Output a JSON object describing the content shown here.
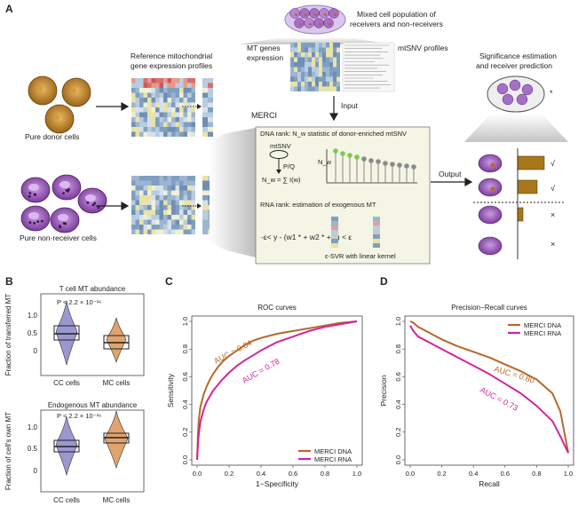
{
  "panels": [
    "A",
    "B",
    "C",
    "D"
  ],
  "panel_a": {
    "mixed_label": [
      "Mixed cell population of",
      "receivers and non-receivers"
    ],
    "mt_genes_label": [
      "MT genes",
      "expression"
    ],
    "mtsnv_label": "mtSNV profiles",
    "reference_label": [
      "Reference mitochondrial",
      "gene expression profiles"
    ],
    "significance_label": [
      "Significance estimation",
      "and receiver prediction"
    ],
    "pure_donor": "Pure donor cells",
    "pure_nonreceiver": "Pure non-receiver cells",
    "input_label": "Input",
    "merci_label": "MERCI",
    "output_label": "Output",
    "dna_rank": "DNA rank: N_w statistic of donor-enriched mtSNV",
    "mtsnv_small": "mtSNV",
    "pq": "P/Q",
    "nw_axis": "N_w",
    "nw_formula": "N_w = ∑ I(w)",
    "rna_rank": "RNA rank: estimation of exogenous MT",
    "svr_formula": "-ε< y - (w1 *       + w2 *       + b) < ε",
    "svr_label": "ε-SVR  with linear kernel",
    "check": "√",
    "cross": "×",
    "star": "*"
  },
  "panel_b": {
    "top": {
      "title": "T cell MT abundance",
      "ylabel": "Fraction of transferred MT",
      "pvalue": "P <  2.2 × 10⁻¹⁶",
      "yticks": [
        "0",
        "0.5",
        "1.0"
      ]
    },
    "bottom": {
      "title": "Endogenous MT abundance",
      "ylabel": "Fraction of cell's own MT",
      "pvalue": "P <  2.2 × 10⁻¹⁶",
      "yticks": [
        "0",
        "0.5",
        "1.0"
      ]
    },
    "xlabels": [
      "CC cells",
      "MC  cells"
    ]
  },
  "chart_data": [
    {
      "type": "line",
      "panel": "C",
      "title": "ROC curves",
      "xlabel": "1−Specificity",
      "ylabel": "Sensitivity",
      "xlim": [
        0,
        1
      ],
      "ylim": [
        0,
        1
      ],
      "xticks": [
        "0.0",
        "0.2",
        "0.4",
        "0.6",
        "0.8",
        "1.0"
      ],
      "yticks": [
        "0.0",
        "0.2",
        "0.4",
        "0.6",
        "0.8",
        "1.0"
      ],
      "legend_position": "bottom-right",
      "series": [
        {
          "name": "MERCI DNA",
          "color": "#b5682a",
          "auc_label": "AUC = 0.84",
          "x": [
            0,
            0.005,
            0.01,
            0.02,
            0.04,
            0.06,
            0.08,
            0.1,
            0.13,
            0.16,
            0.2,
            0.25,
            0.3,
            0.35,
            0.4,
            0.5,
            0.6,
            0.7,
            0.8,
            0.9,
            1.0
          ],
          "y": [
            0,
            0.18,
            0.28,
            0.38,
            0.47,
            0.53,
            0.58,
            0.62,
            0.67,
            0.71,
            0.75,
            0.79,
            0.83,
            0.86,
            0.88,
            0.91,
            0.93,
            0.95,
            0.97,
            0.99,
            1.0
          ]
        },
        {
          "name": "MERCI RNA",
          "color": "#d6239a",
          "auc_label": "AUC = 0.78",
          "x": [
            0,
            0.005,
            0.01,
            0.02,
            0.04,
            0.06,
            0.08,
            0.1,
            0.15,
            0.2,
            0.25,
            0.3,
            0.4,
            0.5,
            0.6,
            0.7,
            0.8,
            0.9,
            1.0
          ],
          "y": [
            0,
            0.1,
            0.18,
            0.27,
            0.36,
            0.42,
            0.46,
            0.5,
            0.57,
            0.63,
            0.68,
            0.72,
            0.79,
            0.85,
            0.89,
            0.93,
            0.96,
            0.98,
            1.0
          ]
        }
      ]
    },
    {
      "type": "line",
      "panel": "D",
      "title": "Precision−Recall curves",
      "xlabel": "Recall",
      "ylabel": "Precision",
      "xlim": [
        0,
        1
      ],
      "ylim": [
        0,
        1
      ],
      "xticks": [
        "0.0",
        "0.2",
        "0.4",
        "0.6",
        "0.8",
        "1.0"
      ],
      "yticks": [
        "0.0",
        "0.2",
        "0.4",
        "0.6",
        "0.8",
        "1.0"
      ],
      "legend_position": "top-right",
      "series": [
        {
          "name": "MERCI DNA",
          "color": "#b5682a",
          "auc_label": "AUC = 0.80",
          "x": [
            0,
            0.02,
            0.05,
            0.1,
            0.15,
            0.2,
            0.3,
            0.4,
            0.5,
            0.6,
            0.7,
            0.8,
            0.9,
            0.95,
            1.0
          ],
          "y": [
            1.0,
            0.99,
            0.96,
            0.93,
            0.9,
            0.87,
            0.82,
            0.78,
            0.74,
            0.69,
            0.64,
            0.58,
            0.48,
            0.35,
            0.05
          ]
        },
        {
          "name": "MERCI RNA",
          "color": "#d6239a",
          "auc_label": "AUC = 0.73",
          "x": [
            0,
            0.02,
            0.05,
            0.1,
            0.15,
            0.2,
            0.3,
            0.4,
            0.5,
            0.6,
            0.7,
            0.8,
            0.9,
            0.95,
            1.0
          ],
          "y": [
            0.97,
            0.93,
            0.89,
            0.86,
            0.83,
            0.8,
            0.74,
            0.68,
            0.62,
            0.55,
            0.48,
            0.39,
            0.28,
            0.17,
            0.05
          ]
        }
      ]
    }
  ]
}
